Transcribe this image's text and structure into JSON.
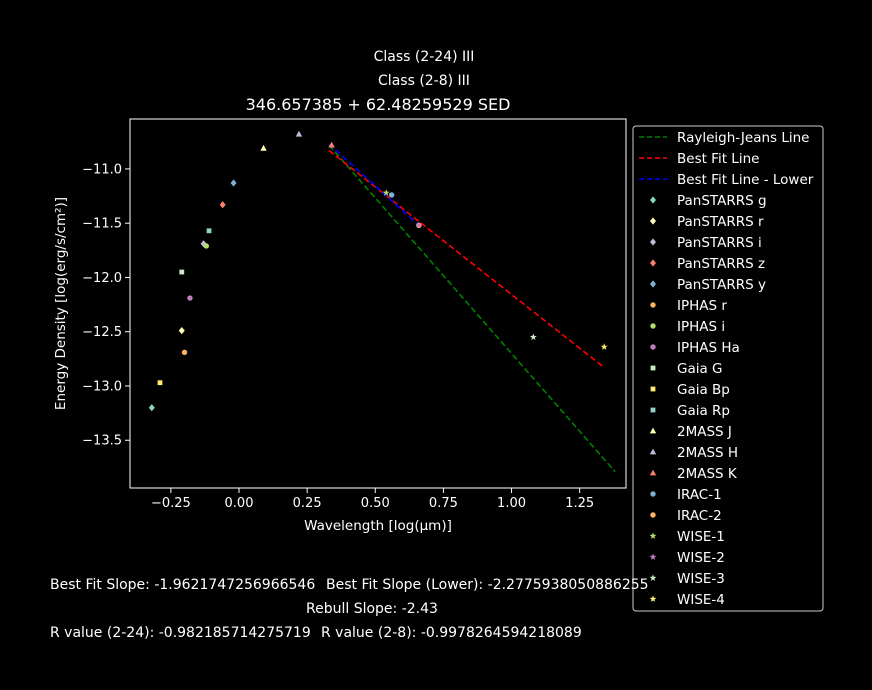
{
  "header": {
    "class_24": "Class (2-24) III",
    "class_8": "Class (2-8) III",
    "title": "346.657385 + 62.48259529 SED"
  },
  "chart_data": {
    "type": "scatter",
    "xlabel": "Wavelength [log(μm)]",
    "ylabel": "Energy Density [log(erg/s/cm²)]",
    "xlim": [
      -0.4,
      1.42
    ],
    "ylim": [
      -13.94,
      -10.54
    ],
    "xticks": [
      {
        "value": -0.25,
        "label": "−0.25"
      },
      {
        "value": 0.0,
        "label": "0.00"
      },
      {
        "value": 0.25,
        "label": "0.25"
      },
      {
        "value": 0.5,
        "label": "0.50"
      },
      {
        "value": 0.75,
        "label": "0.75"
      },
      {
        "value": 1.0,
        "label": "1.00"
      },
      {
        "value": 1.25,
        "label": "1.25"
      }
    ],
    "yticks": [
      {
        "value": -11.0,
        "label": "−11.0"
      },
      {
        "value": -11.5,
        "label": "−11.5"
      },
      {
        "value": -12.0,
        "label": "−12.0"
      },
      {
        "value": -12.5,
        "label": "−12.5"
      },
      {
        "value": -13.0,
        "label": "−13.0"
      },
      {
        "value": -13.5,
        "label": "−13.5"
      }
    ],
    "grid": false,
    "legend_position": "outside-right",
    "lines": [
      {
        "name": "Rayleigh-Jeans Line",
        "color": "#008000",
        "dash": true,
        "x": [
          0.33,
          1.38
        ],
        "y": [
          -10.78,
          -13.79
        ]
      },
      {
        "name": "Best Fit Line",
        "color": "#ff0000",
        "dash": true,
        "x": [
          0.33,
          1.34
        ],
        "y": [
          -10.83,
          -12.83
        ]
      },
      {
        "name": "Best Fit Line - Lower",
        "color": "#0000ff",
        "dash": true,
        "x": [
          0.33,
          0.66
        ],
        "y": [
          -10.77,
          -11.52
        ]
      }
    ],
    "series": [
      {
        "name": "PanSTARRS g",
        "color": "#8dd3c7",
        "marker": "diamond",
        "x": [
          -0.32
        ],
        "y": [
          -13.2
        ]
      },
      {
        "name": "PanSTARRS r",
        "color": "#ffffb3",
        "marker": "diamond",
        "x": [
          -0.21
        ],
        "y": [
          -12.49
        ]
      },
      {
        "name": "PanSTARRS i",
        "color": "#bebada",
        "marker": "diamond",
        "x": [
          -0.13
        ],
        "y": [
          -11.69
        ]
      },
      {
        "name": "PanSTARRS z",
        "color": "#fb8072",
        "marker": "diamond",
        "x": [
          -0.06
        ],
        "y": [
          -11.33
        ]
      },
      {
        "name": "PanSTARRS y",
        "color": "#80b1d3",
        "marker": "diamond",
        "x": [
          -0.02
        ],
        "y": [
          -11.13
        ]
      },
      {
        "name": "IPHAS r",
        "color": "#fdb462",
        "marker": "circle",
        "x": [
          -0.2
        ],
        "y": [
          -12.69
        ]
      },
      {
        "name": "IPHAS i",
        "color": "#b3de69",
        "marker": "circle",
        "x": [
          -0.12
        ],
        "y": [
          -11.71
        ]
      },
      {
        "name": "IPHAS Ha",
        "color": "#bc80bd",
        "marker": "circle",
        "x": [
          -0.18
        ],
        "y": [
          -12.19
        ]
      },
      {
        "name": "Gaia G",
        "color": "#ccebc5",
        "marker": "square",
        "x": [
          -0.21
        ],
        "y": [
          -11.95
        ]
      },
      {
        "name": "Gaia Bp",
        "color": "#ffed6f",
        "marker": "square",
        "x": [
          -0.29
        ],
        "y": [
          -12.97
        ]
      },
      {
        "name": "Gaia Rp",
        "color": "#8dd3c7",
        "marker": "square",
        "x": [
          -0.11
        ],
        "y": [
          -11.57
        ]
      },
      {
        "name": "2MASS J",
        "color": "#ffffb3",
        "marker": "triangle",
        "x": [
          0.09
        ],
        "y": [
          -10.81
        ]
      },
      {
        "name": "2MASS H",
        "color": "#bebada",
        "marker": "triangle",
        "x": [
          0.22
        ],
        "y": [
          -10.68
        ]
      },
      {
        "name": "2MASS K",
        "color": "#fb8072",
        "marker": "triangle",
        "x": [
          0.34
        ],
        "y": [
          -10.78
        ]
      },
      {
        "name": "IRAC-1",
        "color": "#80b1d3",
        "marker": "circle",
        "x": [
          0.56
        ],
        "y": [
          -11.24
        ]
      },
      {
        "name": "IRAC-2",
        "color": "#fdb462",
        "marker": "circle",
        "x": [
          0.66
        ],
        "y": [
          -11.52
        ]
      },
      {
        "name": "WISE-1",
        "color": "#b3de69",
        "marker": "star",
        "x": [
          0.54
        ],
        "y": [
          -11.22
        ]
      },
      {
        "name": "WISE-2",
        "color": "#bc80bd",
        "marker": "star",
        "x": [
          0.66
        ],
        "y": [
          -11.52
        ]
      },
      {
        "name": "WISE-3",
        "color": "#ccebc5",
        "marker": "star",
        "x": [
          1.08
        ],
        "y": [
          -12.55
        ]
      },
      {
        "name": "WISE-4",
        "color": "#ffed6f",
        "marker": "star",
        "x": [
          1.34
        ],
        "y": [
          -12.64
        ]
      }
    ]
  },
  "footer": {
    "best_fit": "Best Fit Slope: -1.9621747256966546",
    "best_fit_lower": "Best Fit Slope (Lower): -2.2775938050886255",
    "rebull": "Rebull Slope: -2.43",
    "r_24": "R value (2-24): -0.982185714275719",
    "r_8": "R value (2-8): -0.9978264594218089"
  }
}
